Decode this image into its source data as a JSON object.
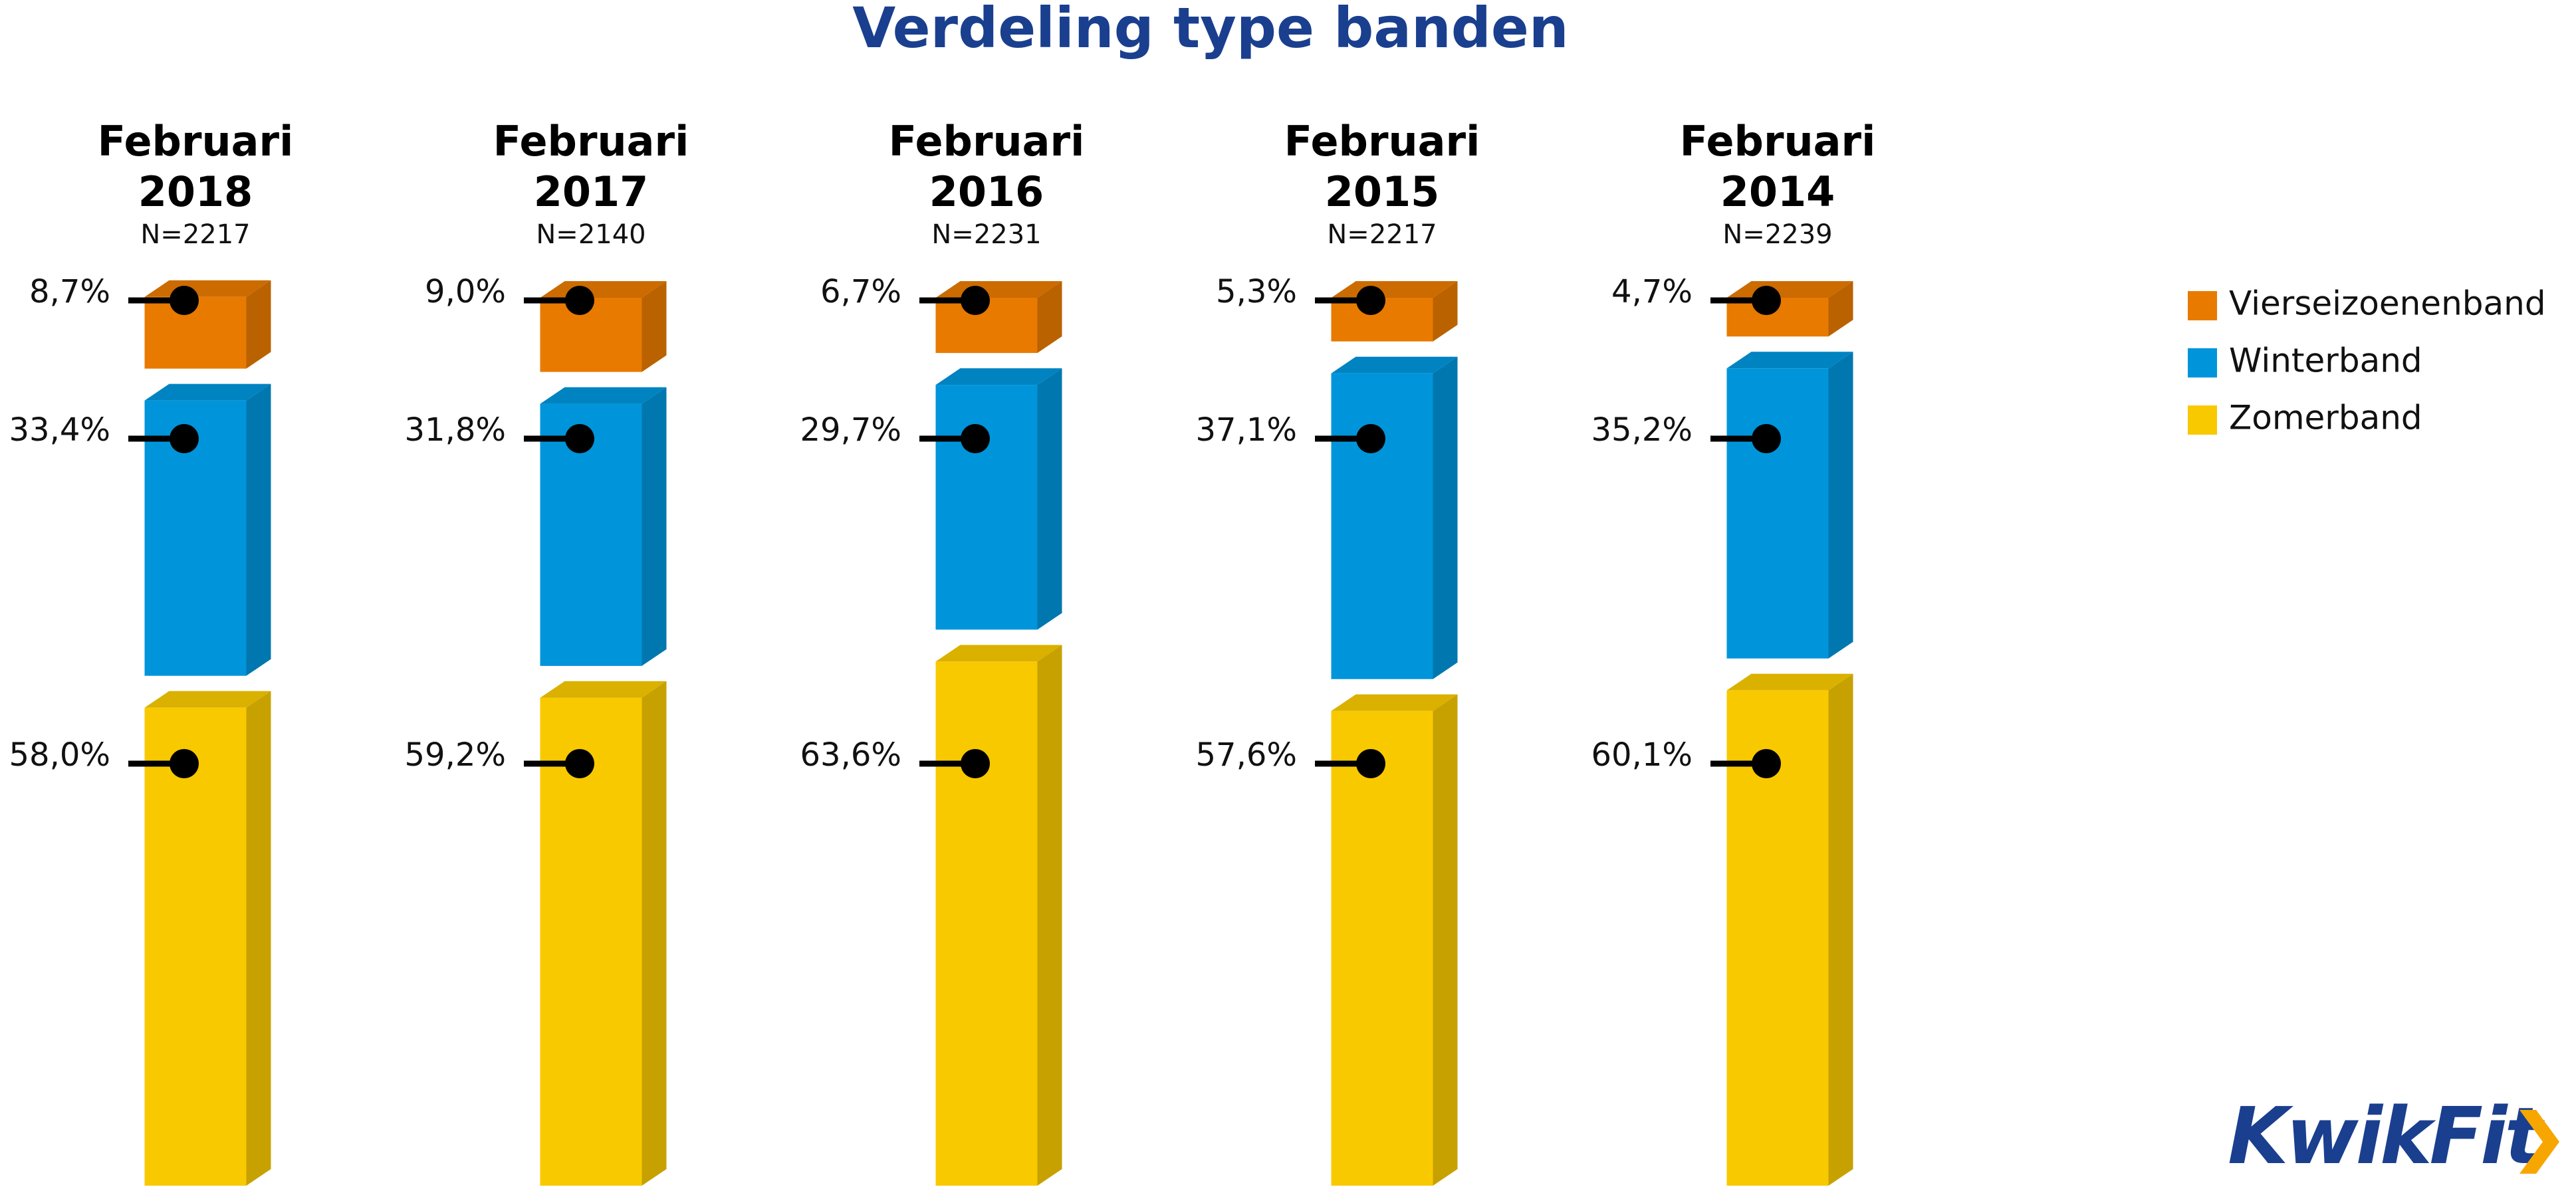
{
  "chart_data": {
    "type": "bar",
    "stacked": true,
    "title": "Verdeling type banden",
    "categories": [
      "Februari 2018",
      "Februari 2017",
      "Februari 2016",
      "Februari 2015",
      "Februari 2014"
    ],
    "n_labels": [
      "N=2217",
      "N=2140",
      "N=2231",
      "N=2217",
      "N=2239"
    ],
    "series": [
      {
        "name": "Vierseizoenenband",
        "color": "#e87a00",
        "values": [
          8.7,
          9.0,
          6.7,
          5.3,
          4.7
        ],
        "value_labels": [
          "8,7%",
          "9,0%",
          "6,7%",
          "5,3%",
          "4,7%"
        ]
      },
      {
        "name": "Winterband",
        "color": "#0095db",
        "values": [
          33.4,
          31.8,
          29.7,
          37.1,
          35.2
        ],
        "value_labels": [
          "33,4%",
          "31,8%",
          "29,7%",
          "37,1%",
          "35,2%"
        ]
      },
      {
        "name": "Zomerband",
        "color": "#f9c900",
        "values": [
          58.0,
          59.2,
          63.6,
          57.6,
          60.1
        ],
        "value_labels": [
          "58,0%",
          "59,2%",
          "63,6%",
          "57,6%",
          "60,1%"
        ]
      }
    ],
    "legend": "right",
    "logo": "KwikFit"
  }
}
